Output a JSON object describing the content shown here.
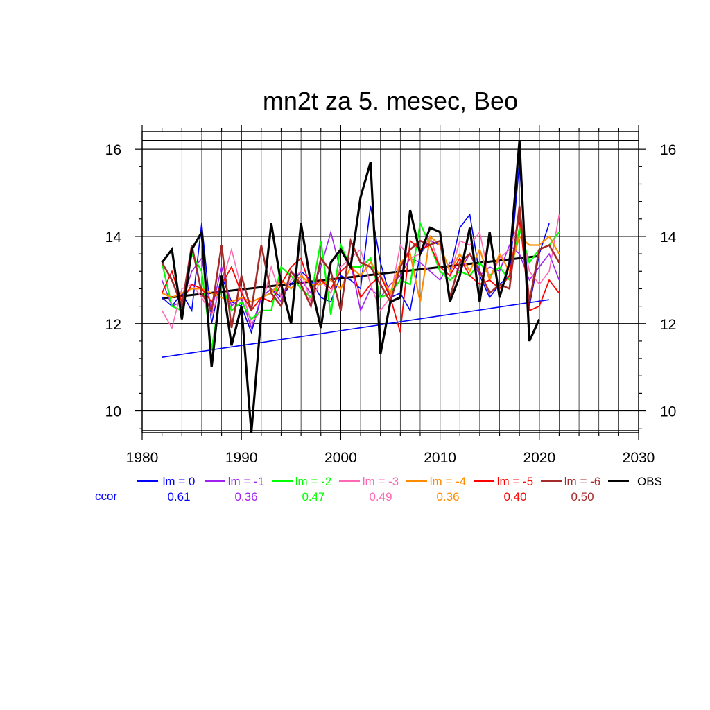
{
  "chart_data": {
    "type": "line",
    "title": "mn2t za 5. mesec, Beo",
    "xlim": [
      1980,
      2030
    ],
    "ylim": [
      9.5,
      16.4
    ],
    "x_ticks": [
      1980,
      1990,
      2000,
      2010,
      2020,
      2030
    ],
    "y_ticks": [
      10,
      12,
      14,
      16
    ],
    "x_tick_labels": [
      "1980",
      "1990",
      "2000",
      "2010",
      "2020",
      "2030"
    ],
    "y_tick_labels": [
      "10",
      "12",
      "14",
      "16"
    ],
    "grid": true,
    "legend": {
      "position": "bottom",
      "ccor_label": "ccor"
    },
    "series": [
      {
        "name": "lm = 0",
        "color": "#0000ff",
        "ccor": "0.61",
        "width": 1.6,
        "x": [
          1982,
          1983,
          1984,
          1985,
          1986,
          1987,
          1988,
          1989,
          1990,
          1991,
          1992,
          1993,
          1994,
          1995,
          1996,
          1997,
          1998,
          1999,
          2000,
          2001,
          2002,
          2003,
          2004,
          2005,
          2006,
          2007,
          2008,
          2009,
          2010,
          2011,
          2012,
          2013,
          2014,
          2015,
          2016,
          2017,
          2018,
          2019,
          2020,
          2021
        ],
        "y": [
          12.6,
          12.4,
          12.7,
          12.3,
          14.3,
          12.0,
          13.1,
          12.5,
          12.4,
          11.8,
          12.6,
          12.8,
          12.6,
          12.9,
          13.2,
          13.0,
          12.6,
          12.5,
          13.1,
          13.0,
          12.8,
          14.7,
          13.4,
          12.6,
          12.7,
          12.3,
          13.6,
          13.9,
          13.8,
          13.2,
          14.2,
          14.5,
          13.1,
          12.6,
          12.9,
          13.1,
          15.7,
          12.4,
          13.6,
          14.3
        ]
      },
      {
        "name": "lm = -1",
        "color": "#a020f0",
        "ccor": "0.36",
        "width": 1.6,
        "x": [
          1982,
          1983,
          1984,
          1985,
          1986,
          1987,
          1988,
          1989,
          1990,
          1991,
          1992,
          1993,
          1994,
          1995,
          1996,
          1997,
          1998,
          1999,
          2000,
          2001,
          2002,
          2003,
          2004,
          2005,
          2006,
          2007,
          2008,
          2009,
          2010,
          2011,
          2012,
          2013,
          2014,
          2015,
          2016,
          2017,
          2018,
          2019,
          2020,
          2021,
          2022
        ],
        "y": [
          13.0,
          12.4,
          12.5,
          13.2,
          13.5,
          12.3,
          13.3,
          12.4,
          12.6,
          11.9,
          12.6,
          12.8,
          12.5,
          13.2,
          13.0,
          12.7,
          13.3,
          14.1,
          13.2,
          13.4,
          12.3,
          12.8,
          12.6,
          12.9,
          13.1,
          13.5,
          13.4,
          13.2,
          13.0,
          13.4,
          13.2,
          13.6,
          13.1,
          13.3,
          13.2,
          13.8,
          13.6,
          13.0,
          13.3,
          13.6,
          13.0
        ]
      },
      {
        "name": "lm = -2",
        "color": "#00ff00",
        "ccor": "0.47",
        "width": 2.2,
        "x": [
          1982,
          1983,
          1984,
          1985,
          1986,
          1987,
          1988,
          1989,
          1990,
          1991,
          1992,
          1993,
          1994,
          1995,
          1996,
          1997,
          1998,
          1999,
          2000,
          2001,
          2002,
          2003,
          2004,
          2005,
          2006,
          2007,
          2008,
          2009,
          2010,
          2011,
          2012,
          2013,
          2014,
          2015,
          2016,
          2017,
          2018,
          2019,
          2020,
          2021,
          2022
        ],
        "y": [
          13.4,
          12.4,
          12.3,
          13.6,
          13.2,
          11.4,
          12.9,
          12.3,
          12.5,
          12.1,
          12.3,
          12.3,
          13.3,
          13.1,
          12.8,
          12.6,
          13.9,
          12.2,
          13.8,
          13.3,
          13.3,
          13.5,
          12.6,
          12.7,
          13.0,
          12.9,
          14.3,
          13.8,
          13.2,
          13.0,
          13.2,
          13.1,
          13.4,
          13.1,
          13.3,
          13.0,
          14.2,
          13.4,
          13.7,
          13.8,
          14.1
        ]
      },
      {
        "name": "lm = -3",
        "color": "#ff69b4",
        "ccor": "0.49",
        "width": 1.6,
        "x": [
          1982,
          1983,
          1984,
          1985,
          1986,
          1987,
          1988,
          1989,
          1990,
          1991,
          1992,
          1993,
          1994,
          1995,
          1996,
          1997,
          1998,
          1999,
          2000,
          2001,
          2002,
          2003,
          2004,
          2005,
          2006,
          2007,
          2008,
          2009,
          2010,
          2011,
          2012,
          2013,
          2014,
          2015,
          2016,
          2017,
          2018,
          2019,
          2020,
          2021,
          2022
        ],
        "y": [
          12.3,
          11.9,
          12.8,
          12.9,
          12.6,
          12.2,
          12.9,
          13.7,
          12.8,
          12.0,
          12.3,
          13.3,
          12.6,
          13.0,
          13.2,
          12.5,
          13.0,
          12.7,
          13.3,
          13.5,
          13.7,
          12.9,
          12.3,
          12.6,
          13.8,
          13.5,
          13.6,
          14.0,
          13.3,
          13.1,
          13.9,
          13.8,
          14.1,
          13.0,
          13.5,
          13.7,
          14.4,
          13.2,
          12.9,
          13.2,
          14.5
        ]
      },
      {
        "name": "lm = -4",
        "color": "#ff8c00",
        "ccor": "0.36",
        "width": 2.2,
        "x": [
          1982,
          1983,
          1984,
          1985,
          1986,
          1987,
          1988,
          1989,
          1990,
          1991,
          1992,
          1993,
          1994,
          1995,
          1996,
          1997,
          1998,
          1999,
          2000,
          2001,
          2002,
          2003,
          2004,
          2005,
          2006,
          2007,
          2008,
          2009,
          2010,
          2011,
          2012,
          2013,
          2014,
          2015,
          2016,
          2017,
          2018,
          2019,
          2020,
          2021,
          2022
        ],
        "y": [
          12.7,
          12.6,
          12.7,
          12.8,
          12.8,
          12.7,
          12.6,
          12.5,
          12.6,
          12.5,
          12.6,
          12.7,
          13.0,
          12.8,
          13.1,
          12.9,
          12.9,
          13.0,
          12.8,
          13.3,
          13.1,
          13.4,
          13.1,
          12.7,
          13.4,
          13.6,
          12.5,
          14.0,
          13.8,
          13.2,
          13.6,
          13.2,
          13.7,
          13.0,
          13.6,
          13.2,
          14.0,
          13.8,
          13.8,
          14.0,
          13.6
        ]
      },
      {
        "name": "lm = -5",
        "color": "#ff0000",
        "ccor": "0.40",
        "width": 1.8,
        "x": [
          1982,
          1983,
          1984,
          1985,
          1986,
          1987,
          1988,
          1989,
          1990,
          1991,
          1992,
          1993,
          1994,
          1995,
          1996,
          1997,
          1998,
          1999,
          2000,
          2001,
          2002,
          2003,
          2004,
          2005,
          2006,
          2007,
          2008,
          2009,
          2010,
          2011,
          2012,
          2013,
          2014,
          2015,
          2016,
          2017,
          2018,
          2019,
          2020,
          2021,
          2022
        ],
        "y": [
          12.7,
          13.2,
          12.5,
          12.9,
          12.8,
          12.5,
          12.9,
          13.3,
          12.7,
          12.3,
          12.6,
          12.5,
          12.9,
          13.3,
          13.5,
          12.8,
          13.0,
          12.8,
          13.2,
          13.4,
          12.6,
          12.9,
          13.1,
          12.6,
          11.8,
          13.9,
          13.7,
          13.8,
          13.3,
          13.1,
          13.5,
          13.1,
          12.9,
          13.0,
          12.8,
          13.1,
          14.5,
          12.3,
          12.4,
          13.0,
          12.7
        ]
      },
      {
        "name": "lm = -6",
        "color": "#a52a2a",
        "ccor": "0.50",
        "width": 2.6,
        "x": [
          1982,
          1983,
          1984,
          1985,
          1986,
          1987,
          1988,
          1989,
          1990,
          1991,
          1992,
          1993,
          1994,
          1995,
          1996,
          1997,
          1998,
          1999,
          2000,
          2001,
          2002,
          2003,
          2004,
          2005,
          2006,
          2007,
          2008,
          2009,
          2010,
          2011,
          2012,
          2013,
          2014,
          2015,
          2016,
          2017,
          2018,
          2019,
          2020,
          2021,
          2022
        ],
        "y": [
          13.4,
          13.0,
          12.4,
          13.8,
          12.7,
          12.3,
          13.8,
          11.9,
          13.1,
          12.3,
          13.8,
          12.7,
          12.4,
          13.2,
          12.9,
          12.4,
          13.5,
          13.2,
          12.3,
          13.9,
          13.4,
          13.3,
          12.9,
          12.5,
          13.3,
          13.7,
          13.9,
          13.8,
          13.9,
          12.6,
          13.4,
          13.6,
          13.2,
          12.7,
          12.9,
          12.8,
          14.7,
          12.5,
          13.7,
          13.8,
          13.4
        ]
      },
      {
        "name": "OBS",
        "color": "#000000",
        "ccor": "",
        "width": 3.2,
        "x": [
          1982,
          1983,
          1984,
          1985,
          1986,
          1987,
          1988,
          1989,
          1990,
          1991,
          1992,
          1993,
          1994,
          1995,
          1996,
          1997,
          1998,
          1999,
          2000,
          2001,
          2002,
          2003,
          2004,
          2005,
          2006,
          2007,
          2008,
          2009,
          2010,
          2011,
          2012,
          2013,
          2014,
          2015,
          2016,
          2017,
          2018,
          2019,
          2020
        ],
        "y": [
          13.4,
          13.7,
          12.1,
          13.7,
          14.1,
          11.0,
          13.1,
          11.5,
          12.4,
          9.5,
          12.2,
          14.3,
          12.9,
          12.0,
          14.3,
          12.9,
          11.9,
          13.4,
          13.7,
          13.3,
          14.9,
          15.7,
          11.3,
          12.5,
          12.6,
          14.6,
          13.6,
          14.2,
          14.1,
          12.5,
          13.1,
          14.2,
          12.5,
          14.1,
          12.6,
          13.4,
          16.2,
          11.6,
          12.1
        ]
      }
    ],
    "trend_lines": [
      {
        "name": "obs-trend",
        "color": "#000000",
        "width": 3,
        "x": [
          1982,
          2020
        ],
        "y": [
          12.58,
          13.55
        ]
      },
      {
        "name": "lm0-trend",
        "color": "#0000ff",
        "width": 1.6,
        "x": [
          1982,
          2021
        ],
        "y": [
          11.23,
          12.55
        ]
      }
    ],
    "ref_lines_y": [
      16.2
    ]
  }
}
